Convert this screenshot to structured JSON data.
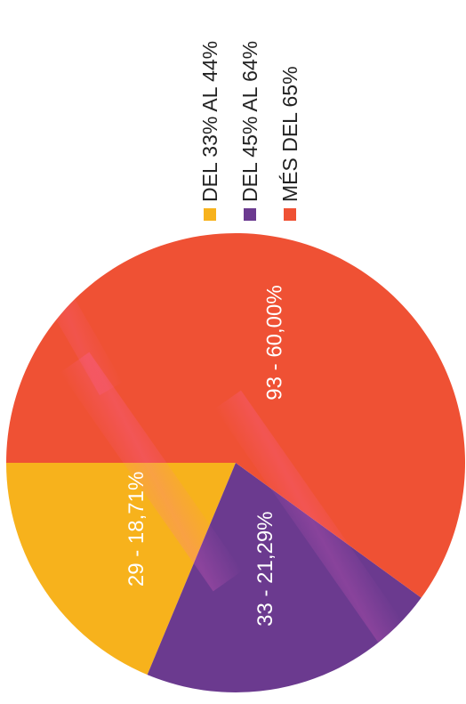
{
  "chart_data": {
    "type": "pie",
    "slices": [
      {
        "legend": "DEL 33% AL 44%",
        "value": 29,
        "percent": 18.71,
        "label": "29 - 18,71%",
        "color": "#f7b21c"
      },
      {
        "legend": "DEL 45% AL 64%",
        "value": 33,
        "percent": 21.29,
        "label": "33 - 21,29%",
        "color": "#6b3a8f"
      },
      {
        "legend": "MÉS DEL 65%",
        "value": 93,
        "percent": 60.0,
        "label": "93 - 60,00%",
        "color": "#ef5134"
      }
    ],
    "legend_placement": "right"
  }
}
